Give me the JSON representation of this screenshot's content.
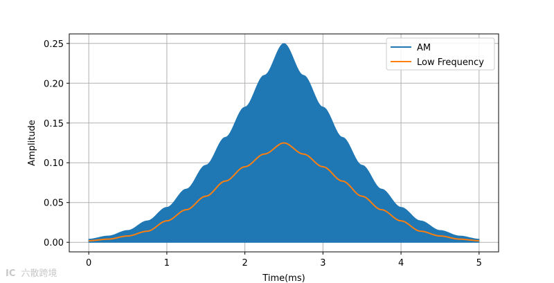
{
  "chart_data": {
    "type": "line",
    "title": "",
    "xlabel": "Time(ms)",
    "ylabel": "Amplitude",
    "xlim": [
      -0.25,
      5.25
    ],
    "ylim": [
      -0.012,
      0.262
    ],
    "xticks": [
      0,
      1,
      2,
      3,
      4,
      5
    ],
    "xtick_labels": [
      "0",
      "1",
      "2",
      "3",
      "4",
      "5"
    ],
    "yticks": [
      0.0,
      0.05,
      0.1,
      0.15,
      0.2,
      0.25
    ],
    "ytick_labels": [
      "0.00",
      "0.05",
      "0.10",
      "0.15",
      "0.20",
      "0.25"
    ],
    "grid": true,
    "legend_position": "top-right",
    "series": [
      {
        "name": "AM",
        "color": "#1f77b4",
        "style": "filled-oscillation",
        "x": [
          0,
          0.25,
          0.5,
          0.75,
          1.0,
          1.25,
          1.5,
          1.75,
          2.0,
          2.25,
          2.5,
          2.75,
          3.0,
          3.25,
          3.5,
          3.75,
          4.0,
          4.25,
          4.5,
          4.75,
          5.0
        ],
        "upper": [
          0.004,
          0.008,
          0.015,
          0.027,
          0.044,
          0.067,
          0.097,
          0.132,
          0.17,
          0.21,
          0.25,
          0.21,
          0.17,
          0.132,
          0.097,
          0.067,
          0.044,
          0.027,
          0.015,
          0.008,
          0.004
        ],
        "lower": [
          0.0,
          0.0,
          0.0,
          0.0,
          0.0,
          0.0,
          0.0,
          0.0,
          0.0,
          0.0,
          0.0,
          0.0,
          0.0,
          0.0,
          0.0,
          0.0,
          0.0,
          0.0,
          0.0,
          0.0,
          0.0
        ]
      },
      {
        "name": "Low Frequency",
        "color": "#ff7f0e",
        "style": "line",
        "x": [
          0,
          0.25,
          0.5,
          0.75,
          1.0,
          1.25,
          1.5,
          1.75,
          2.0,
          2.25,
          2.5,
          2.75,
          3.0,
          3.25,
          3.5,
          3.75,
          4.0,
          4.25,
          4.5,
          4.75,
          5.0
        ],
        "y": [
          0.002,
          0.004,
          0.008,
          0.014,
          0.027,
          0.041,
          0.058,
          0.077,
          0.095,
          0.111,
          0.125,
          0.111,
          0.095,
          0.077,
          0.058,
          0.041,
          0.027,
          0.014,
          0.008,
          0.004,
          0.002
        ]
      }
    ]
  },
  "watermark": {
    "icon_text": "IC",
    "text": "六散跨境"
  }
}
